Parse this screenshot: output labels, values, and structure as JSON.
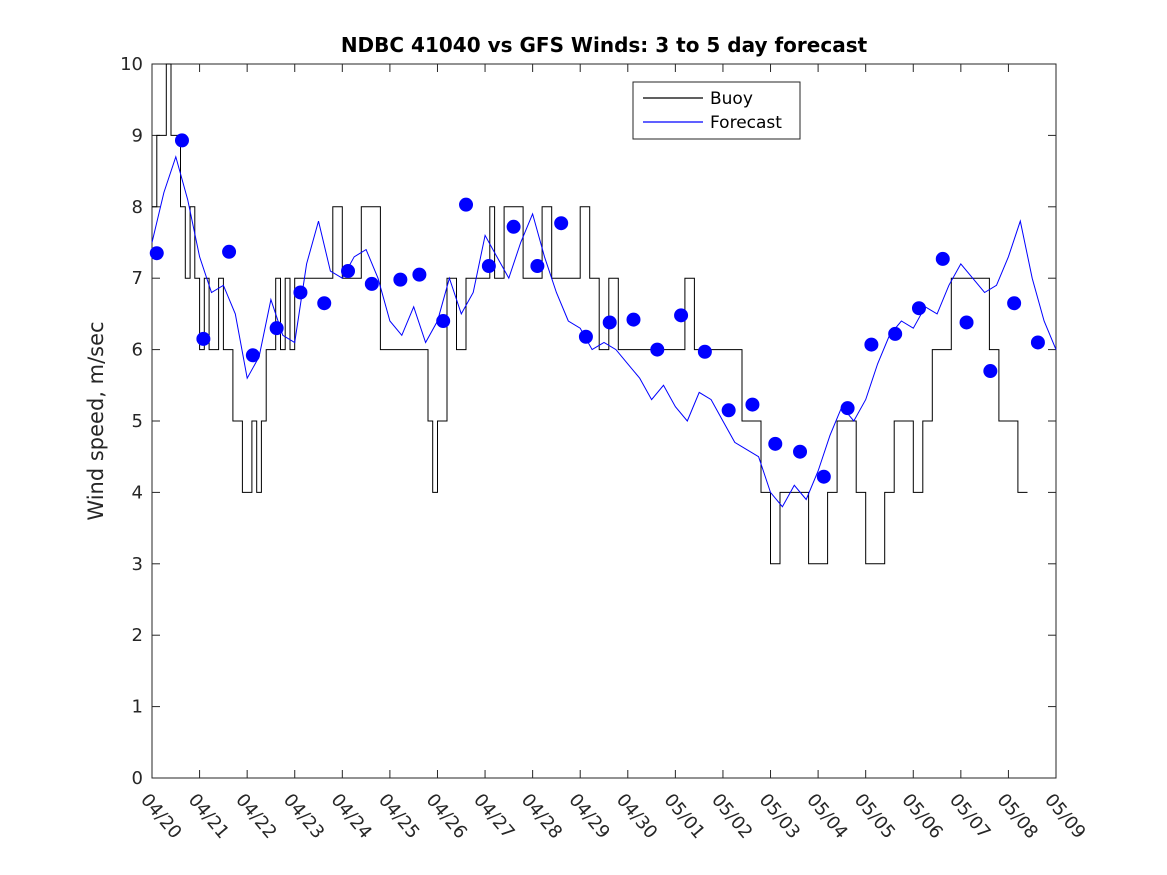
{
  "chart_data": {
    "type": "line",
    "title": "NDBC 41040 vs GFS Winds: 3 to 5 day forecast",
    "xlabel": "",
    "ylabel": "Wind speed, m/sec",
    "ylim": [
      0,
      10
    ],
    "yticks": [
      "0",
      "1",
      "2",
      "3",
      "4",
      "5",
      "6",
      "7",
      "8",
      "9",
      "10"
    ],
    "xticks": [
      "04/20",
      "04/21",
      "04/22",
      "04/23",
      "04/24",
      "04/25",
      "04/26",
      "04/27",
      "04/28",
      "04/29",
      "04/30",
      "05/01",
      "05/02",
      "05/03",
      "05/04",
      "05/05",
      "05/06",
      "05/07",
      "05/08",
      "05/09"
    ],
    "xlim_days": [
      0,
      19
    ],
    "grid": false,
    "legend": {
      "placement": "top-center",
      "entries": [
        {
          "name": "Buoy",
          "color": "#000000"
        },
        {
          "name": "Forecast",
          "color": "#0000ff"
        }
      ]
    },
    "series": [
      {
        "name": "Buoy",
        "style": "line",
        "color": "#000000",
        "x": [
          0.0,
          0.1,
          0.2,
          0.3,
          0.4,
          0.5,
          0.6,
          0.7,
          0.8,
          0.9,
          1.0,
          1.1,
          1.2,
          1.3,
          1.4,
          1.5,
          1.6,
          1.7,
          1.8,
          1.9,
          2.0,
          2.1,
          2.2,
          2.3,
          2.4,
          2.5,
          2.6,
          2.7,
          2.8,
          2.9,
          3.0,
          3.2,
          3.4,
          3.6,
          3.8,
          4.0,
          4.2,
          4.4,
          4.6,
          4.8,
          5.0,
          5.2,
          5.4,
          5.6,
          5.8,
          5.9,
          6.0,
          6.2,
          6.4,
          6.6,
          6.8,
          7.0,
          7.1,
          7.2,
          7.4,
          7.6,
          7.8,
          8.0,
          8.2,
          8.4,
          8.6,
          8.8,
          9.0,
          9.2,
          9.4,
          9.6,
          9.8,
          10.0,
          10.2,
          10.4,
          10.6,
          10.8,
          11.0,
          11.2,
          11.4,
          11.6,
          11.8,
          12.0,
          12.2,
          12.4,
          12.6,
          12.8,
          13.0,
          13.2,
          13.4,
          13.6,
          13.8,
          14.0,
          14.2,
          14.4,
          14.6,
          14.8,
          15.0,
          15.2,
          15.4,
          15.6,
          15.8,
          16.0,
          16.2,
          16.4,
          16.6,
          16.8,
          17.0,
          17.2,
          17.4,
          17.6,
          17.8,
          18.0,
          18.2,
          18.4
        ],
        "y": [
          8,
          9,
          9,
          10,
          9,
          9,
          8,
          7,
          8,
          7,
          6,
          7,
          6,
          6,
          7,
          6,
          6,
          5,
          5,
          4,
          4,
          5,
          4,
          5,
          6,
          6,
          7,
          6,
          7,
          6,
          7,
          7,
          7,
          7,
          8,
          7,
          7,
          8,
          8,
          6,
          6,
          6,
          6,
          6,
          5,
          4,
          5,
          7,
          6,
          7,
          7,
          7,
          8,
          7,
          8,
          8,
          7,
          7,
          8,
          7,
          7,
          7,
          8,
          7,
          6,
          7,
          6,
          6,
          6,
          6,
          6,
          6,
          6,
          7,
          6,
          6,
          6,
          6,
          6,
          5,
          5,
          4,
          3,
          4,
          4,
          4,
          3,
          3,
          4,
          5,
          5,
          4,
          3,
          3,
          4,
          5,
          5,
          4,
          5,
          6,
          6,
          7,
          7,
          7,
          7,
          6,
          5,
          5,
          4,
          4
        ]
      },
      {
        "name": "Forecast",
        "style": "line",
        "color": "#0000ff",
        "x": [
          0.0,
          0.25,
          0.5,
          0.75,
          1.0,
          1.25,
          1.5,
          1.75,
          2.0,
          2.25,
          2.5,
          2.75,
          3.0,
          3.25,
          3.5,
          3.75,
          4.0,
          4.25,
          4.5,
          4.75,
          5.0,
          5.25,
          5.5,
          5.75,
          6.0,
          6.25,
          6.5,
          6.75,
          7.0,
          7.25,
          7.5,
          7.75,
          8.0,
          8.25,
          8.5,
          8.75,
          9.0,
          9.25,
          9.5,
          9.75,
          10.0,
          10.25,
          10.5,
          10.75,
          11.0,
          11.25,
          11.5,
          11.75,
          12.0,
          12.25,
          12.5,
          12.75,
          13.0,
          13.25,
          13.5,
          13.75,
          14.0,
          14.25,
          14.5,
          14.75,
          15.0,
          15.25,
          15.5,
          15.75,
          16.0,
          16.25,
          16.5,
          16.75,
          17.0,
          17.25,
          17.5,
          17.75,
          18.0,
          18.25,
          18.5,
          18.75,
          19.0
        ],
        "y": [
          7.5,
          8.2,
          8.7,
          8.1,
          7.3,
          6.8,
          6.9,
          6.5,
          5.6,
          5.9,
          6.7,
          6.2,
          6.1,
          7.2,
          7.8,
          7.1,
          7.0,
          7.3,
          7.4,
          7.0,
          6.4,
          6.2,
          6.6,
          6.1,
          6.4,
          7.0,
          6.5,
          6.8,
          7.6,
          7.3,
          7.0,
          7.5,
          7.9,
          7.3,
          6.8,
          6.4,
          6.3,
          6.0,
          6.1,
          6.0,
          5.8,
          5.6,
          5.3,
          5.5,
          5.2,
          5.0,
          5.4,
          5.3,
          5.0,
          4.7,
          4.6,
          4.5,
          4.0,
          3.8,
          4.1,
          3.9,
          4.3,
          4.8,
          5.2,
          5.0,
          5.3,
          5.8,
          6.2,
          6.4,
          6.3,
          6.6,
          6.5,
          6.9,
          7.2,
          7.0,
          6.8,
          6.9,
          7.3,
          7.8,
          7.0,
          6.4,
          6.0
        ]
      },
      {
        "name": "Forecast",
        "style": "markers",
        "color": "#0000ff",
        "x": [
          0.1,
          0.63,
          1.08,
          1.62,
          2.12,
          2.62,
          3.12,
          3.62,
          4.12,
          4.62,
          5.22,
          5.62,
          6.12,
          6.6,
          7.08,
          7.6,
          8.1,
          8.6,
          9.12,
          9.62,
          10.12,
          10.62,
          11.12,
          11.62,
          12.12,
          12.62,
          13.1,
          13.62,
          14.12,
          14.62,
          15.12,
          15.62,
          16.12,
          16.62,
          17.12,
          17.62,
          18.12,
          18.62
        ],
        "y": [
          7.35,
          8.93,
          6.15,
          7.37,
          5.92,
          6.3,
          6.8,
          6.65,
          7.1,
          6.92,
          6.98,
          7.05,
          6.4,
          8.03,
          7.17,
          7.72,
          7.17,
          7.77,
          6.18,
          6.38,
          6.42,
          6.0,
          6.48,
          5.97,
          5.15,
          5.23,
          4.68,
          4.57,
          4.22,
          5.18,
          6.07,
          6.22,
          6.58,
          7.27,
          6.38,
          5.7,
          6.65,
          6.1
        ]
      }
    ]
  }
}
